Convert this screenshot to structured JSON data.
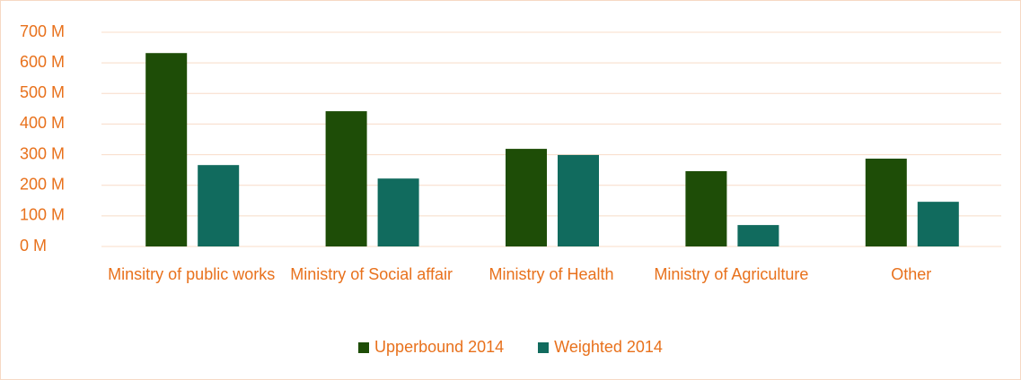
{
  "chart_data": {
    "type": "bar",
    "categories": [
      "Minsitry of public works",
      "Ministry of Social affair",
      "Ministry of Health",
      "Ministry of Agriculture",
      "Other"
    ],
    "series": [
      {
        "name": "Upperbound 2014",
        "color": "#1e4d07",
        "values": [
          632,
          442,
          319,
          246,
          287
        ]
      },
      {
        "name": "Weighted 2014",
        "color": "#116b5e",
        "values": [
          266,
          222,
          299,
          70,
          146
        ]
      }
    ],
    "ylim": [
      0,
      700
    ],
    "yticks": [
      {
        "value": 0,
        "label": "0 M"
      },
      {
        "value": 100,
        "label": "100 M"
      },
      {
        "value": 200,
        "label": "200 M"
      },
      {
        "value": 300,
        "label": "300 M"
      },
      {
        "value": 400,
        "label": "400 M"
      },
      {
        "value": 500,
        "label": "500 M"
      },
      {
        "value": 600,
        "label": "600 M"
      },
      {
        "value": 700,
        "label": "700 M"
      }
    ],
    "grid": true,
    "legend": "bottom"
  }
}
